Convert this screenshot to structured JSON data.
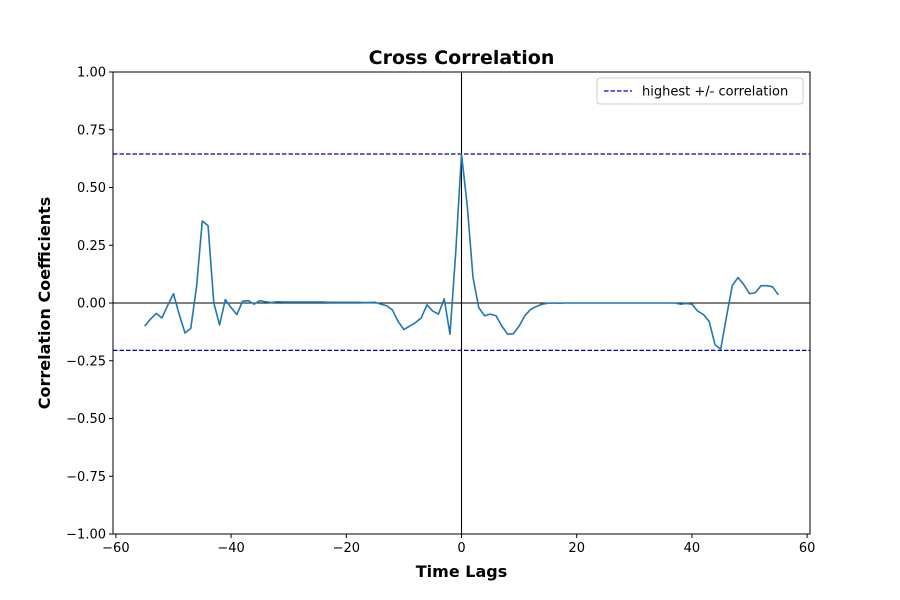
{
  "chart_data": {
    "type": "line",
    "title": "Cross Correlation",
    "xlabel": "Time Lags",
    "ylabel": "Correlation Coefficients",
    "xlim": [
      -60.5,
      60.5
    ],
    "ylim": [
      -1.0,
      1.0
    ],
    "xticks": [
      -60,
      -40,
      -20,
      0,
      20,
      40,
      60
    ],
    "xtick_labels": [
      "−60",
      "−40",
      "−20",
      "0",
      "20",
      "40",
      "60"
    ],
    "yticks": [
      -1.0,
      -0.75,
      -0.5,
      -0.25,
      0.0,
      0.25,
      0.5,
      0.75,
      1.0
    ],
    "ytick_labels": [
      "−1.00",
      "−0.75",
      "−0.50",
      "−0.25",
      "0.00",
      "0.25",
      "0.50",
      "0.75",
      "1.00"
    ],
    "grid": false,
    "legend_placement": "top-right",
    "series": [
      {
        "color": "#1f77b4",
        "style": "solid",
        "x": [
          -55,
          -54,
          -53,
          -52,
          -51,
          -50,
          -49,
          -48,
          -47,
          -46,
          -45,
          -44,
          -43,
          -42,
          -41,
          -40,
          -39,
          -38,
          -37,
          -36,
          -35,
          -34,
          -33,
          -32,
          -31,
          -30,
          -29,
          -28,
          -27,
          -26,
          -25,
          -24,
          -23,
          -22,
          -21,
          -20,
          -19,
          -18,
          -17,
          -16,
          -15,
          -14,
          -13,
          -12,
          -11,
          -10,
          -9,
          -8,
          -7,
          -6,
          -5,
          -4,
          -3,
          -2,
          -1,
          0,
          1,
          2,
          3,
          4,
          5,
          6,
          7,
          8,
          9,
          10,
          11,
          12,
          13,
          14,
          15,
          16,
          17,
          18,
          19,
          20,
          21,
          22,
          23,
          24,
          25,
          26,
          27,
          28,
          29,
          30,
          31,
          32,
          33,
          34,
          35,
          36,
          37,
          38,
          39,
          40,
          41,
          42,
          43,
          44,
          45,
          46,
          47,
          48,
          49,
          50,
          51,
          52,
          53,
          54,
          55
        ],
        "y": [
          -0.1,
          -0.07,
          -0.045,
          -0.065,
          -0.01,
          0.04,
          -0.05,
          -0.13,
          -0.11,
          0.07,
          0.355,
          0.335,
          0.0,
          -0.095,
          0.015,
          -0.02,
          -0.05,
          0.008,
          0.01,
          -0.005,
          0.01,
          0.005,
          0.002,
          0.005,
          0.004,
          0.004,
          0.004,
          0.004,
          0.004,
          0.004,
          0.004,
          0.004,
          0.003,
          0.003,
          0.003,
          0.003,
          0.003,
          0.003,
          0.002,
          0.002,
          0.003,
          -0.005,
          -0.012,
          -0.03,
          -0.08,
          -0.115,
          -0.1,
          -0.085,
          -0.065,
          -0.008,
          -0.035,
          -0.048,
          0.018,
          -0.135,
          0.22,
          0.645,
          0.42,
          0.11,
          -0.02,
          -0.055,
          -0.048,
          -0.055,
          -0.1,
          -0.135,
          -0.133,
          -0.1,
          -0.055,
          -0.028,
          -0.015,
          -0.005,
          -0.001,
          0.0,
          -0.001,
          0.0,
          0.0,
          0.0,
          0.0,
          0.0,
          0.0,
          0.0,
          0.0,
          0.0,
          0.0,
          0.0,
          0.0,
          0.0,
          0.0,
          0.0,
          0.0,
          0.0,
          0.0,
          0.0,
          0.0,
          -0.005,
          -0.002,
          -0.005,
          -0.035,
          -0.05,
          -0.08,
          -0.18,
          -0.2,
          -0.06,
          0.075,
          0.11,
          0.08,
          0.04,
          0.045,
          0.075,
          0.075,
          0.07,
          0.035
        ]
      }
    ],
    "reference_lines": [
      {
        "value": 0.645,
        "orientation": "horizontal",
        "color": "#0000cc",
        "style": "dashed"
      },
      {
        "value": -0.205,
        "orientation": "horizontal",
        "color": "#0000cc",
        "style": "dashed"
      },
      {
        "value": 0,
        "orientation": "horizontal",
        "color": "#000000",
        "style": "solid"
      },
      {
        "value": 0,
        "orientation": "vertical",
        "color": "#000000",
        "style": "solid"
      }
    ],
    "legend": [
      {
        "label": "highest +/- correlation",
        "color": "#0000cc",
        "style": "dashed"
      }
    ]
  }
}
